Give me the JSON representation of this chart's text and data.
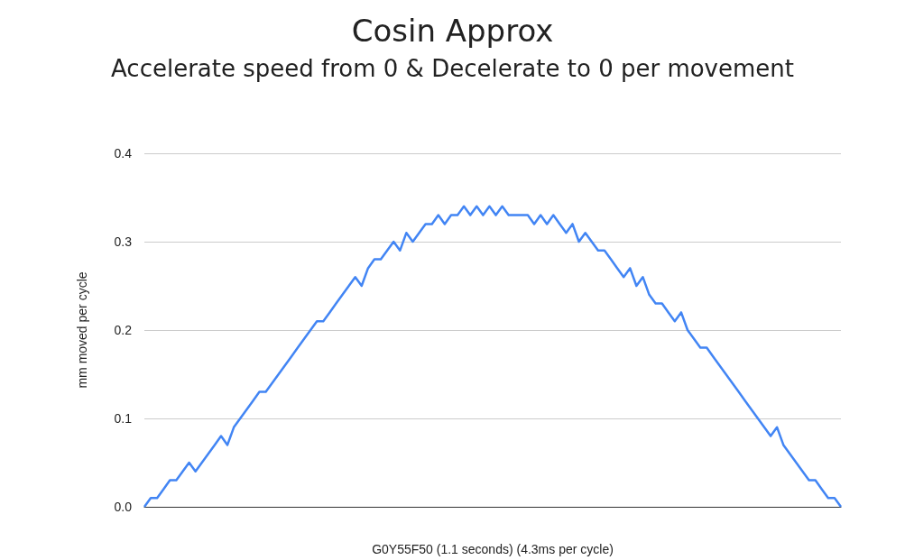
{
  "chart_data": {
    "type": "line",
    "title": "Cosin Approx",
    "subtitle": "Accelerate speed from 0 & Decelerate to 0 per movement",
    "xlabel": "G0Y55F50 (1.1 seconds) (4.3ms per cycle)",
    "ylabel": "mm moved per cycle",
    "categories": [
      null,
      null,
      null,
      null,
      null,
      null,
      null,
      null,
      null,
      null,
      null,
      null,
      null,
      null,
      null,
      null,
      null,
      null,
      null,
      null,
      null,
      null,
      null,
      null,
      null,
      null,
      null,
      null,
      null,
      null,
      null,
      null,
      null,
      null,
      null,
      null,
      null,
      null,
      null,
      null,
      null,
      null,
      null,
      null,
      null,
      null,
      null,
      null,
      null,
      null,
      null,
      null,
      null,
      null,
      null,
      null,
      null,
      null,
      null,
      null,
      null,
      null,
      null,
      null,
      null,
      null,
      null,
      null,
      null,
      null,
      null,
      null,
      null,
      null,
      null,
      null,
      null,
      null,
      null,
      null,
      null,
      null,
      null,
      null,
      null,
      null,
      null,
      null,
      null,
      null,
      null,
      null,
      null,
      null,
      null,
      null,
      null,
      null,
      null,
      null,
      null,
      null,
      null,
      null,
      null,
      null,
      null,
      null,
      null,
      null
    ],
    "series": [
      {
        "color": "#4285f4",
        "values": [
          0,
          0.01,
          0.01,
          0.02,
          0.03,
          0.03,
          0.04,
          0.05,
          0.04,
          0.05,
          0.06,
          0.07,
          0.08,
          0.07,
          0.09,
          0.1,
          0.11,
          0.12,
          0.13,
          0.13,
          0.14,
          0.15,
          0.16,
          0.17,
          0.18,
          0.19,
          0.2,
          0.21,
          0.21,
          0.22,
          0.23,
          0.24,
          0.25,
          0.26,
          0.25,
          0.27,
          0.28,
          0.28,
          0.29,
          0.3,
          0.29,
          0.31,
          0.3,
          0.31,
          0.32,
          0.32,
          0.33,
          0.32,
          0.33,
          0.33,
          0.34,
          0.33,
          0.34,
          0.33,
          0.34,
          0.33,
          0.34,
          0.33,
          0.33,
          0.33,
          0.33,
          0.32,
          0.33,
          0.32,
          0.33,
          0.32,
          0.31,
          0.32,
          0.3,
          0.31,
          0.3,
          0.29,
          0.29,
          0.28,
          0.27,
          0.26,
          0.27,
          0.25,
          0.26,
          0.24,
          0.23,
          0.23,
          0.22,
          0.21,
          0.22,
          0.2,
          0.19,
          0.18,
          0.18,
          0.17,
          0.16,
          0.15,
          0.14,
          0.13,
          0.12,
          0.11,
          0.1,
          0.09,
          0.08,
          0.09,
          0.07,
          0.06,
          0.05,
          0.04,
          0.03,
          0.03,
          0.02,
          0.01,
          0.01,
          0
        ]
      }
    ],
    "ylim": [
      0,
      0.4
    ],
    "yticks": [
      {
        "value": 0,
        "label": "0.0"
      },
      0.1,
      0.2,
      0.3,
      0.4
    ],
    "grid": "y",
    "marker": "none",
    "line_style": "solid"
  }
}
